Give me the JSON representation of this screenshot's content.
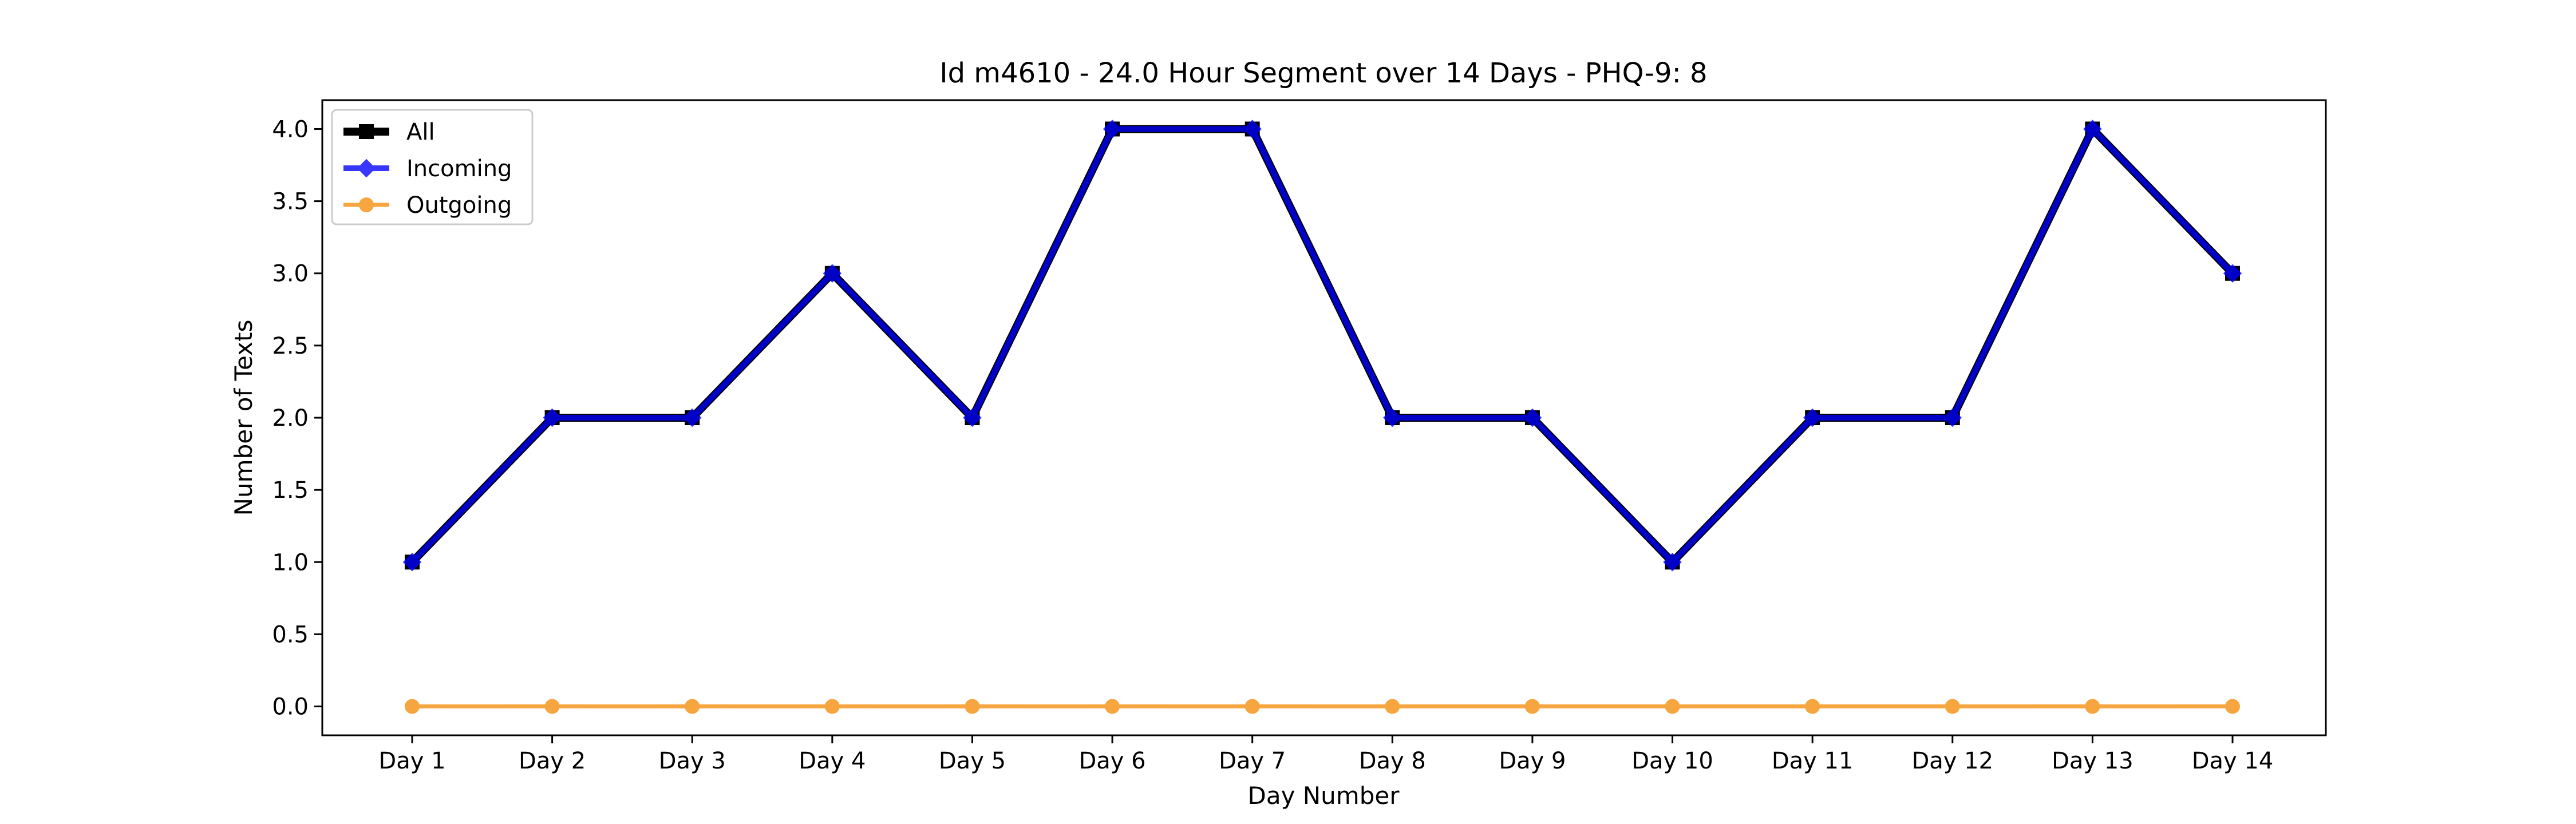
{
  "chart_data": {
    "type": "line",
    "title": "Id m4610 - 24.0 Hour Segment over 14 Days - PHQ-9: 8",
    "xlabel": "Day Number",
    "ylabel": "Number of Texts",
    "categories": [
      "Day 1",
      "Day 2",
      "Day 3",
      "Day 4",
      "Day 5",
      "Day 6",
      "Day 7",
      "Day 8",
      "Day 9",
      "Day 10",
      "Day 11",
      "Day 12",
      "Day 13",
      "Day 14"
    ],
    "ylim": [
      -0.2,
      4.2
    ],
    "yticks": [
      "0.0",
      "0.5",
      "1.0",
      "1.5",
      "2.0",
      "2.5",
      "3.0",
      "3.5",
      "4.0"
    ],
    "grid": false,
    "legend_position": "top-left",
    "series": [
      {
        "name": "All",
        "color": "#000000",
        "marker": "square",
        "values": [
          1,
          2,
          2,
          3,
          2,
          4,
          4,
          2,
          2,
          1,
          2,
          2,
          4,
          3
        ]
      },
      {
        "name": "Incoming",
        "color": "#0000ff",
        "marker": "diamond",
        "values": [
          1,
          2,
          2,
          3,
          2,
          4,
          4,
          2,
          2,
          1,
          2,
          2,
          4,
          3
        ]
      },
      {
        "name": "Outgoing",
        "color": "#f5961e",
        "marker": "circle",
        "values": [
          0,
          0,
          0,
          0,
          0,
          0,
          0,
          0,
          0,
          0,
          0,
          0,
          0,
          0
        ]
      }
    ]
  }
}
